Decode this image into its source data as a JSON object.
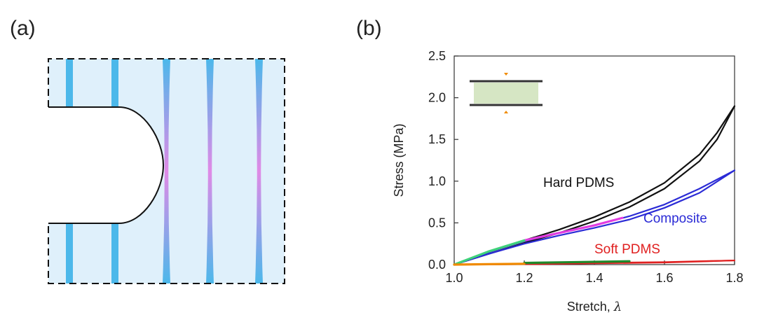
{
  "panels": {
    "a": {
      "label": "(a)"
    },
    "b": {
      "label": "(b)"
    }
  },
  "diagram": {
    "colors": {
      "background": "#dff0fb",
      "fiber": "#4cb8ea",
      "fiber_highlight": "#e08ae6",
      "outline": "#111111"
    },
    "fibers": [
      {
        "name": "fiber-1",
        "state": "straight"
      },
      {
        "name": "fiber-2",
        "state": "straight"
      },
      {
        "name": "fiber-3",
        "state": "necked"
      },
      {
        "name": "fiber-4",
        "state": "necked"
      },
      {
        "name": "fiber-5",
        "state": "necked"
      }
    ]
  },
  "chart_data": {
    "type": "line",
    "xlabel": "Stretch, ",
    "xlabel_symbol": "λ",
    "ylabel": "Stress (MPa)",
    "xlim": [
      1.0,
      1.8
    ],
    "ylim": [
      0.0,
      2.5
    ],
    "xticks": [
      "1.0",
      "1.2",
      "1.4",
      "1.6",
      "1.8"
    ],
    "yticks": [
      "0.0",
      "0.5",
      "1.0",
      "1.5",
      "2.0",
      "2.5"
    ],
    "series": [
      {
        "name": "Hard PDMS",
        "color": "#111111",
        "x": [
          1.0,
          1.1,
          1.2,
          1.3,
          1.4,
          1.5,
          1.6,
          1.7,
          1.75,
          1.8
        ],
        "y": [
          0.0,
          0.15,
          0.29,
          0.42,
          0.57,
          0.75,
          0.98,
          1.32,
          1.58,
          1.9
        ],
        "unload": [
          0.0,
          0.13,
          0.26,
          0.38,
          0.52,
          0.69,
          0.91,
          1.24,
          1.5,
          1.9
        ]
      },
      {
        "name": "Composite",
        "color": "#2b2bd6",
        "x": [
          1.0,
          1.1,
          1.2,
          1.3,
          1.4,
          1.5,
          1.6,
          1.7,
          1.8
        ],
        "y": [
          0.0,
          0.15,
          0.28,
          0.38,
          0.47,
          0.58,
          0.72,
          0.91,
          1.13
        ],
        "unload": [
          0.0,
          0.13,
          0.25,
          0.35,
          0.44,
          0.54,
          0.68,
          0.86,
          1.13
        ]
      },
      {
        "name": "Soft PDMS",
        "color": "#e02020",
        "x": [
          1.0,
          1.2,
          1.4,
          1.6,
          1.8
        ],
        "y": [
          0.0,
          0.01,
          0.02,
          0.03,
          0.05
        ],
        "unload": [
          0.0,
          0.005,
          0.015,
          0.025,
          0.05
        ]
      },
      {
        "name": "magenta-segment",
        "color": "#e23ce0",
        "x": [
          1.2,
          1.3,
          1.4,
          1.48
        ],
        "y": [
          0.29,
          0.38,
          0.47,
          0.56
        ]
      },
      {
        "name": "green-segment",
        "color": "#3fd27a",
        "x": [
          1.0,
          1.1,
          1.2
        ],
        "y": [
          0.0,
          0.16,
          0.29
        ]
      },
      {
        "name": "dark-green-segment",
        "color": "#1e8a2b",
        "x": [
          1.2,
          1.35,
          1.5
        ],
        "y": [
          0.02,
          0.03,
          0.04
        ]
      },
      {
        "name": "orange-segment",
        "color": "#f08a00",
        "x": [
          1.0,
          1.1,
          1.2
        ],
        "y": [
          0.0,
          0.005,
          0.01
        ]
      }
    ],
    "annotations": [
      {
        "text": "Hard PDMS",
        "color": "#111111"
      },
      {
        "text": "Composite",
        "color": "#2b2bd6"
      },
      {
        "text": "Soft PDMS",
        "color": "#e02020"
      }
    ]
  }
}
